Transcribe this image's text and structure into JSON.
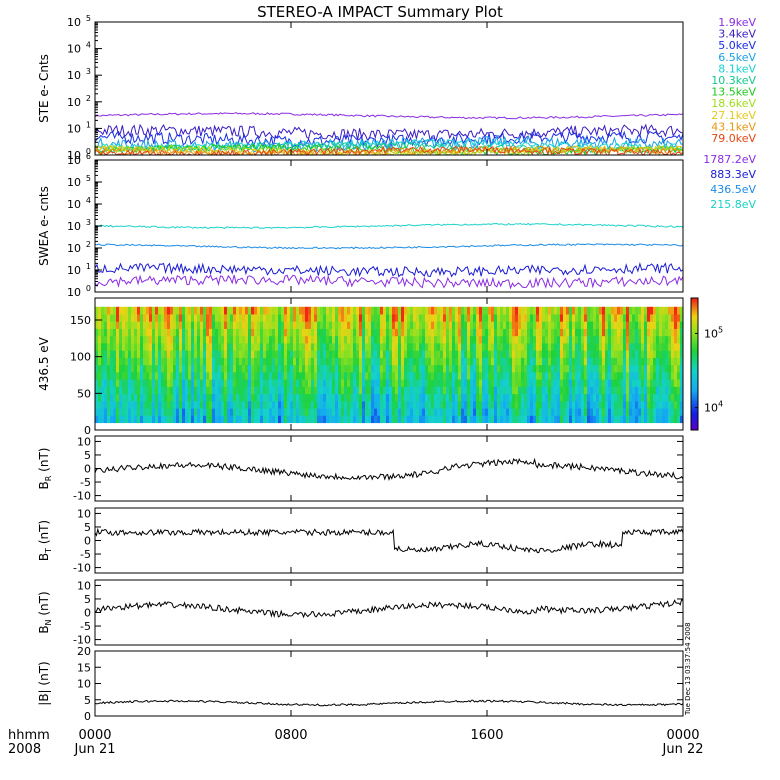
{
  "title": "STEREO-A IMPACT Summary Plot",
  "colors": {
    "background": "#ffffff",
    "axis": "#000000",
    "ste_trace": "#7a1ec8"
  },
  "time_axis": {
    "range_hours": [
      0,
      24
    ],
    "ticks": [
      {
        "t": 0,
        "label": "0000",
        "date": "Jun 21"
      },
      {
        "t": 8,
        "label": "0800",
        "date": ""
      },
      {
        "t": 16,
        "label": "1600",
        "date": ""
      },
      {
        "t": 24,
        "label": "0000",
        "date": "Jun 22"
      }
    ],
    "corner_top": "hhmm",
    "corner_bottom": "2008"
  },
  "timestamp_vertical": "Tue Dec 13 03:37:54 2008",
  "chart_data": [
    {
      "id": "ste",
      "type": "line",
      "ylabel": "STE e- Cnts",
      "yscale": "log",
      "ylim": [
        1,
        100000
      ],
      "ytick_exponents": [
        0,
        1,
        2,
        3,
        4,
        5
      ],
      "legend_position": "right",
      "series": [
        {
          "name": "1.9keV",
          "color": "#8a2be2",
          "level": 30
        },
        {
          "name": "3.4keV",
          "color": "#3a1cc0",
          "level": 7
        },
        {
          "name": "5.0keV",
          "color": "#1a2ee6",
          "level": 4
        },
        {
          "name": "6.5keV",
          "color": "#1aa0e6",
          "level": 2.5
        },
        {
          "name": "8.1keV",
          "color": "#1ad2d2",
          "level": 1.8
        },
        {
          "name": "10.3keV",
          "color": "#14c88c",
          "level": 1.4
        },
        {
          "name": "13.5keV",
          "color": "#1ec81e",
          "level": 1.2
        },
        {
          "name": "18.6keV",
          "color": "#a0dc1e",
          "level": 1.1
        },
        {
          "name": "27.1keV",
          "color": "#e6c81e",
          "level": 1.05
        },
        {
          "name": "43.1keV",
          "color": "#e69614",
          "level": 1.02
        },
        {
          "name": "79.0keV",
          "color": "#e64614",
          "level": 1.01
        }
      ]
    },
    {
      "id": "swea",
      "type": "line",
      "ylabel": "SWEA e- cnts",
      "yscale": "log",
      "ylim": [
        1,
        1000000
      ],
      "ytick_exponents": [
        0,
        1,
        2,
        3,
        4,
        5,
        6
      ],
      "legend_position": "right",
      "series": [
        {
          "name": "1787.2eV",
          "color": "#8a2be2",
          "level": 3
        },
        {
          "name": "883.3eV",
          "color": "#1a1ad2",
          "level": 10
        },
        {
          "name": "436.5eV",
          "color": "#1a8ae6",
          "level": 120
        },
        {
          "name": "215.8eV",
          "color": "#1ad2c8",
          "level": 1000
        }
      ]
    },
    {
      "id": "pad",
      "type": "heatmap",
      "ylabel": "436.5 eV",
      "ylim": [
        0,
        180
      ],
      "yticks": [
        0,
        50,
        100,
        150
      ],
      "colorbar": {
        "scale": "log",
        "range": [
          5000,
          300000
        ],
        "ticks": [
          {
            "exp": 4
          },
          {
            "exp": 5
          }
        ]
      }
    },
    {
      "id": "br",
      "type": "line",
      "ylabel": "B",
      "ysub": "R",
      "yunit": "(nT)",
      "ylim": [
        -12,
        12
      ],
      "yticks": [
        -10,
        -5,
        0,
        5,
        10
      ]
    },
    {
      "id": "bt",
      "type": "line",
      "ylabel": "B",
      "ysub": "T",
      "yunit": "(nT)",
      "ylim": [
        -12,
        12
      ],
      "yticks": [
        -10,
        -5,
        0,
        5,
        10
      ]
    },
    {
      "id": "bn",
      "type": "line",
      "ylabel": "B",
      "ysub": "N",
      "yunit": "(nT)",
      "ylim": [
        -12,
        12
      ],
      "yticks": [
        -10,
        -5,
        0,
        5,
        10
      ]
    },
    {
      "id": "bmag",
      "type": "line",
      "ylabel": "|B|",
      "ysub": "",
      "yunit": "(nT)",
      "ylim": [
        0,
        20
      ],
      "yticks": [
        0,
        5,
        10,
        15,
        20
      ]
    }
  ]
}
